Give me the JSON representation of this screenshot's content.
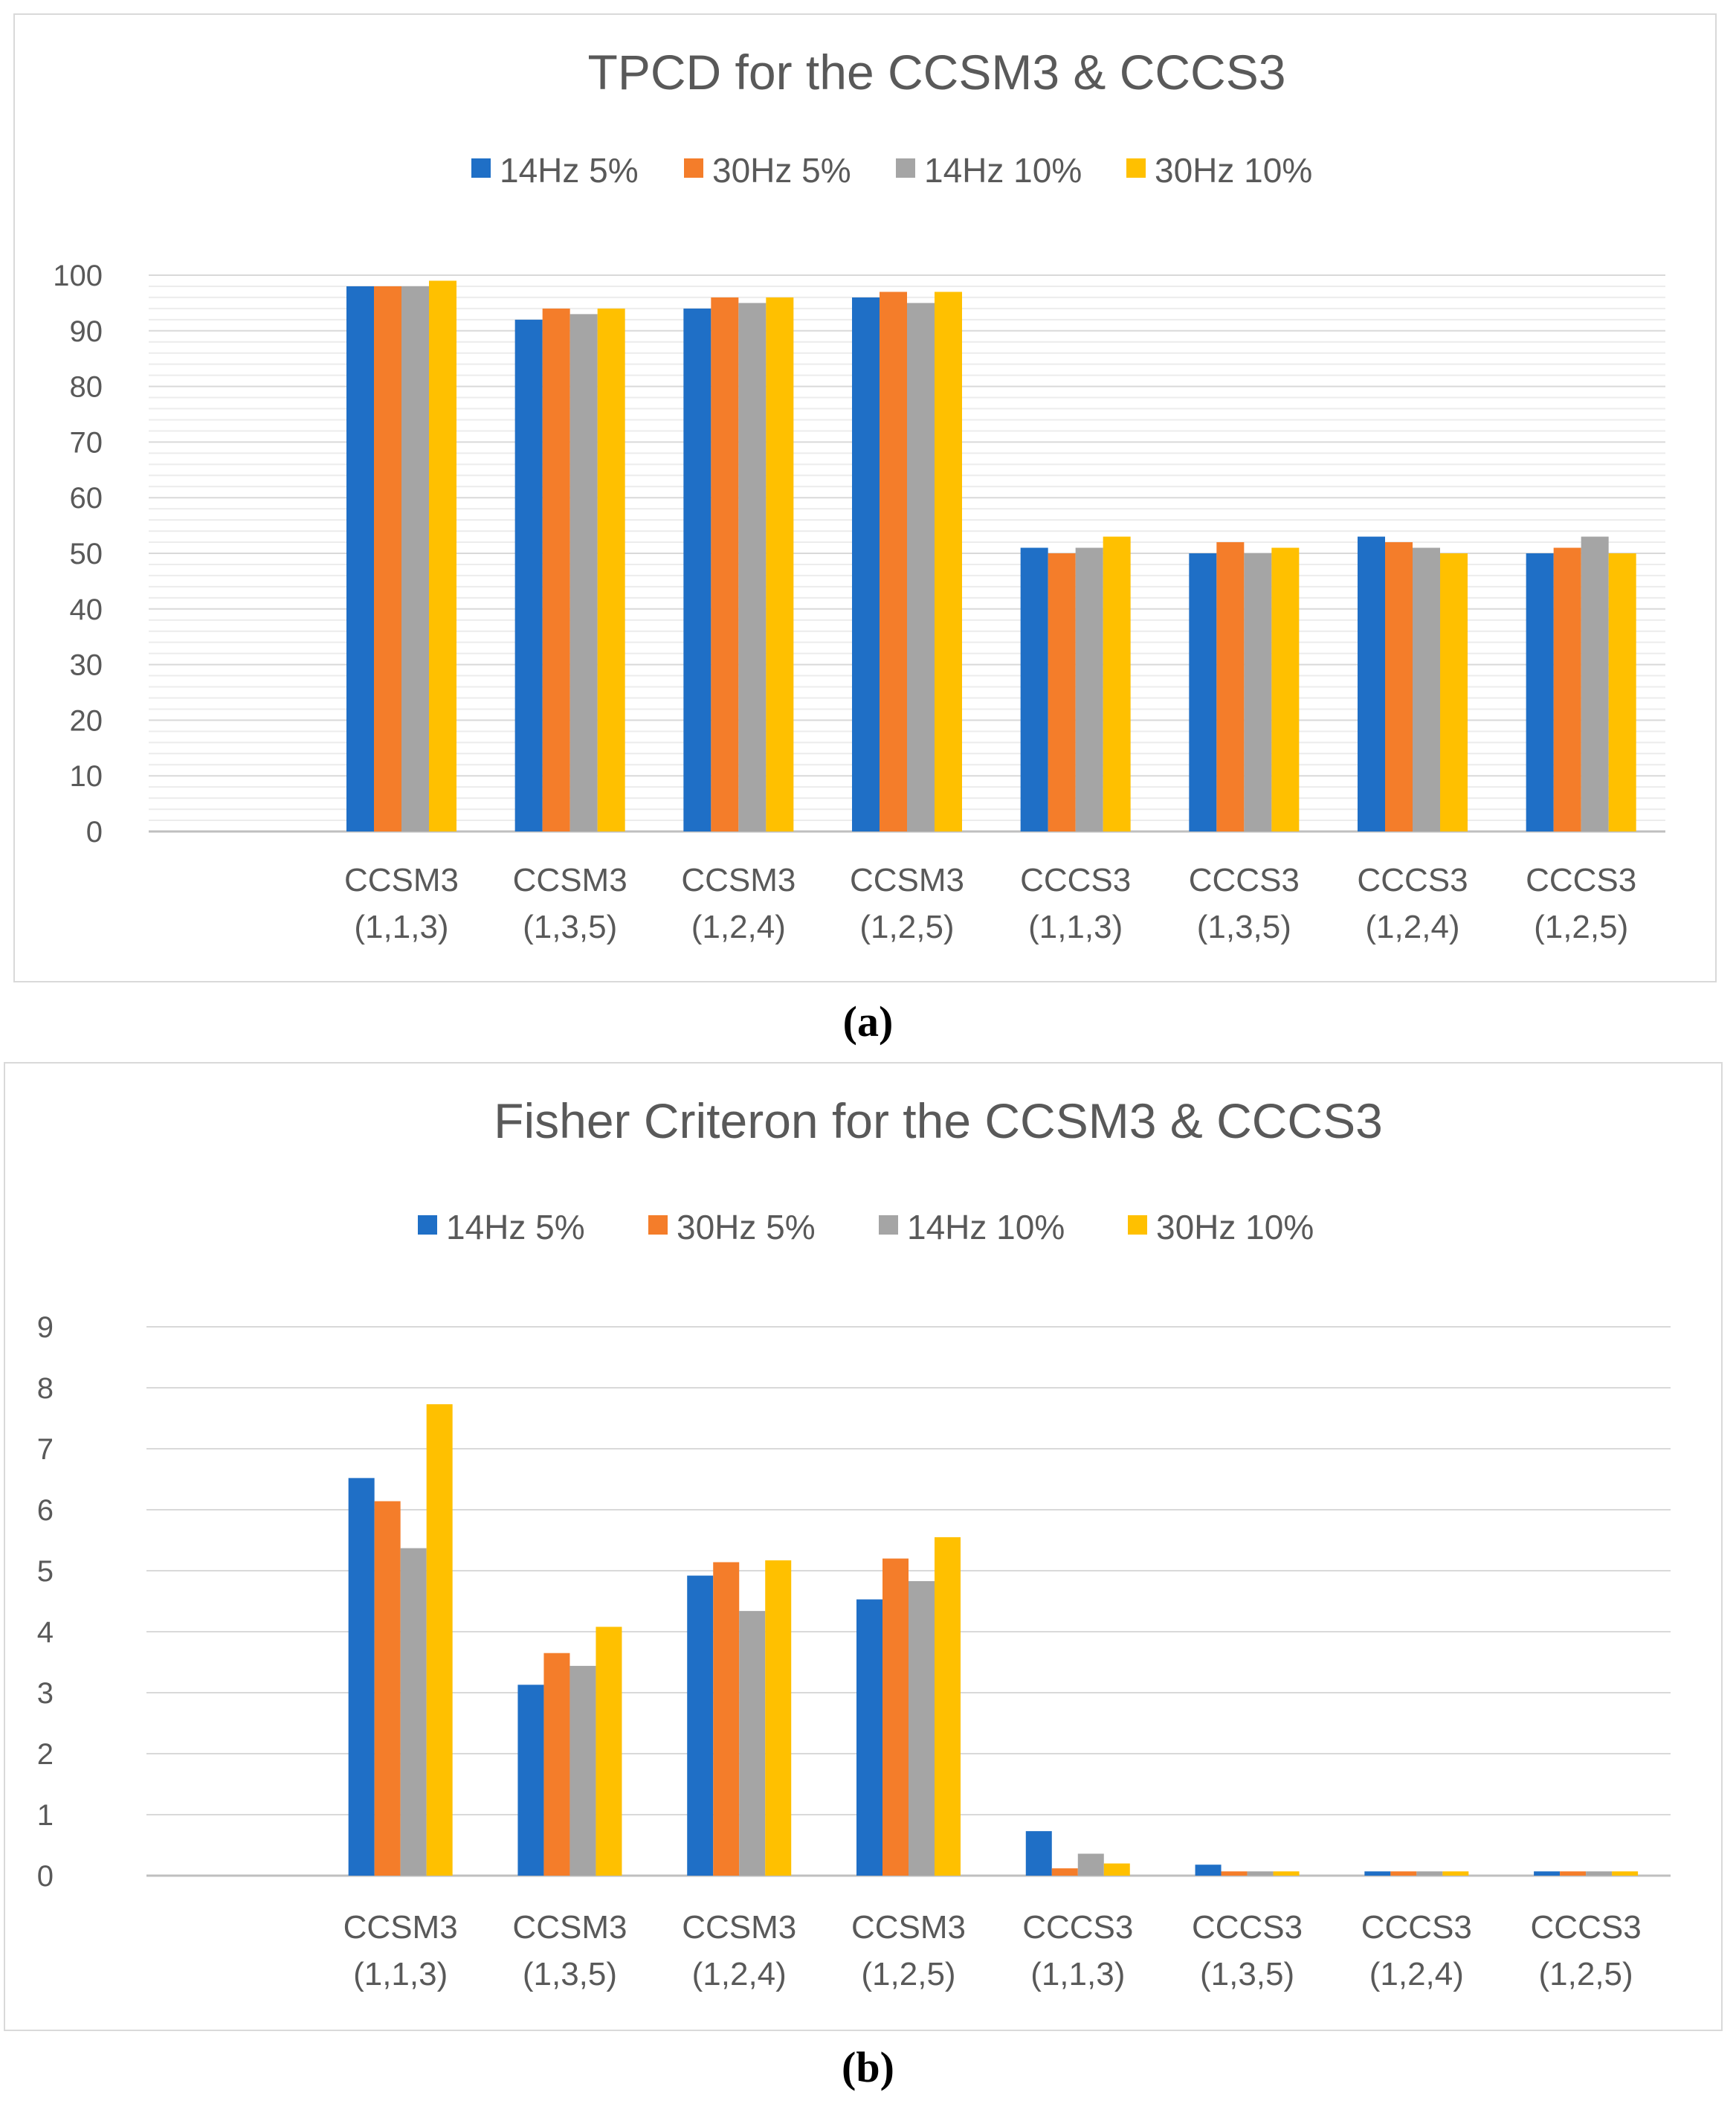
{
  "colors": {
    "14Hz 5%": "#1f6fc6",
    "30Hz 5%": "#f47d2a",
    "14Hz 10%": "#a5a5a5",
    "30Hz 10%": "#ffc000",
    "grid": "#d9d9d9",
    "text": "#595959"
  },
  "chart_data": [
    {
      "type": "bar",
      "title": "TPCD  for the CCSM3 & CCCS3",
      "legend_position": "top",
      "grid": true,
      "ylim": [
        0,
        100
      ],
      "yticks": [
        0,
        10,
        20,
        30,
        40,
        50,
        60,
        70,
        80,
        90,
        100
      ],
      "categories": [
        "",
        "CCSM3 (1,1,3)",
        "CCSM3 (1,3,5)",
        "CCSM3 (1,2,4)",
        "CCSM3 (1,2,5)",
        "CCCS3 (1,1,3)",
        "CCCS3 (1,3,5)",
        "CCCS3 (1,2,4)",
        "CCCS3 (1,2,5)"
      ],
      "category_lines": [
        [
          "",
          ""
        ],
        [
          "CCSM3",
          "(1,1,3)"
        ],
        [
          "CCSM3",
          "(1,3,5)"
        ],
        [
          "CCSM3",
          "(1,2,4)"
        ],
        [
          "CCSM3",
          "(1,2,5)"
        ],
        [
          "CCCS3",
          "(1,1,3)"
        ],
        [
          "CCCS3",
          "(1,3,5)"
        ],
        [
          "CCCS3",
          "(1,2,4)"
        ],
        [
          "CCCS3",
          "(1,2,5)"
        ]
      ],
      "series": [
        {
          "name": "14Hz 5%",
          "values": [
            null,
            98,
            92,
            94,
            96,
            51,
            50,
            53,
            50
          ]
        },
        {
          "name": "30Hz 5%",
          "values": [
            null,
            98,
            94,
            96,
            97,
            50,
            52,
            52,
            51
          ]
        },
        {
          "name": "14Hz 10%",
          "values": [
            null,
            98,
            93,
            95,
            95,
            51,
            50,
            51,
            53
          ]
        },
        {
          "name": "30Hz 10%",
          "values": [
            null,
            99,
            94,
            96,
            97,
            53,
            51,
            50,
            50
          ]
        }
      ]
    },
    {
      "type": "bar",
      "title": "Fisher Criteron  for the CCSM3 & CCCS3",
      "legend_position": "top",
      "grid": true,
      "ylim": [
        0,
        9
      ],
      "yticks": [
        0,
        1,
        2,
        3,
        4,
        5,
        6,
        7,
        8,
        9
      ],
      "categories": [
        "",
        "CCSM3 (1,1,3)",
        "CCSM3 (1,3,5)",
        "CCSM3 (1,2,4)",
        "CCSM3 (1,2,5)",
        "CCCS3 (1,1,3)",
        "CCCS3 (1,3,5)",
        "CCCS3 (1,2,4)",
        "CCCS3 (1,2,5)"
      ],
      "category_lines": [
        [
          "",
          ""
        ],
        [
          "CCSM3",
          "(1,1,3)"
        ],
        [
          "CCSM3",
          "(1,3,5)"
        ],
        [
          "CCSM3",
          "(1,2,4)"
        ],
        [
          "CCSM3",
          "(1,2,5)"
        ],
        [
          "CCCS3",
          "(1,1,3)"
        ],
        [
          "CCCS3",
          "(1,3,5)"
        ],
        [
          "CCCS3",
          "(1,2,4)"
        ],
        [
          "CCCS3",
          "(1,2,5)"
        ]
      ],
      "series": [
        {
          "name": "14Hz 5%",
          "values": [
            null,
            6.52,
            3.13,
            4.92,
            4.53,
            0.73,
            0.18,
            0.07,
            0.07
          ]
        },
        {
          "name": "30Hz 5%",
          "values": [
            null,
            6.14,
            3.65,
            5.14,
            5.2,
            0.12,
            0.07,
            0.07,
            0.07
          ]
        },
        {
          "name": "14Hz 10%",
          "values": [
            null,
            5.37,
            3.44,
            4.34,
            4.83,
            0.36,
            0.07,
            0.07,
            0.07
          ]
        },
        {
          "name": "30Hz 10%",
          "values": [
            null,
            7.73,
            4.08,
            5.17,
            5.55,
            0.2,
            0.07,
            0.07,
            0.07
          ]
        }
      ]
    }
  ],
  "captions": [
    "(a)",
    "(b)"
  ]
}
